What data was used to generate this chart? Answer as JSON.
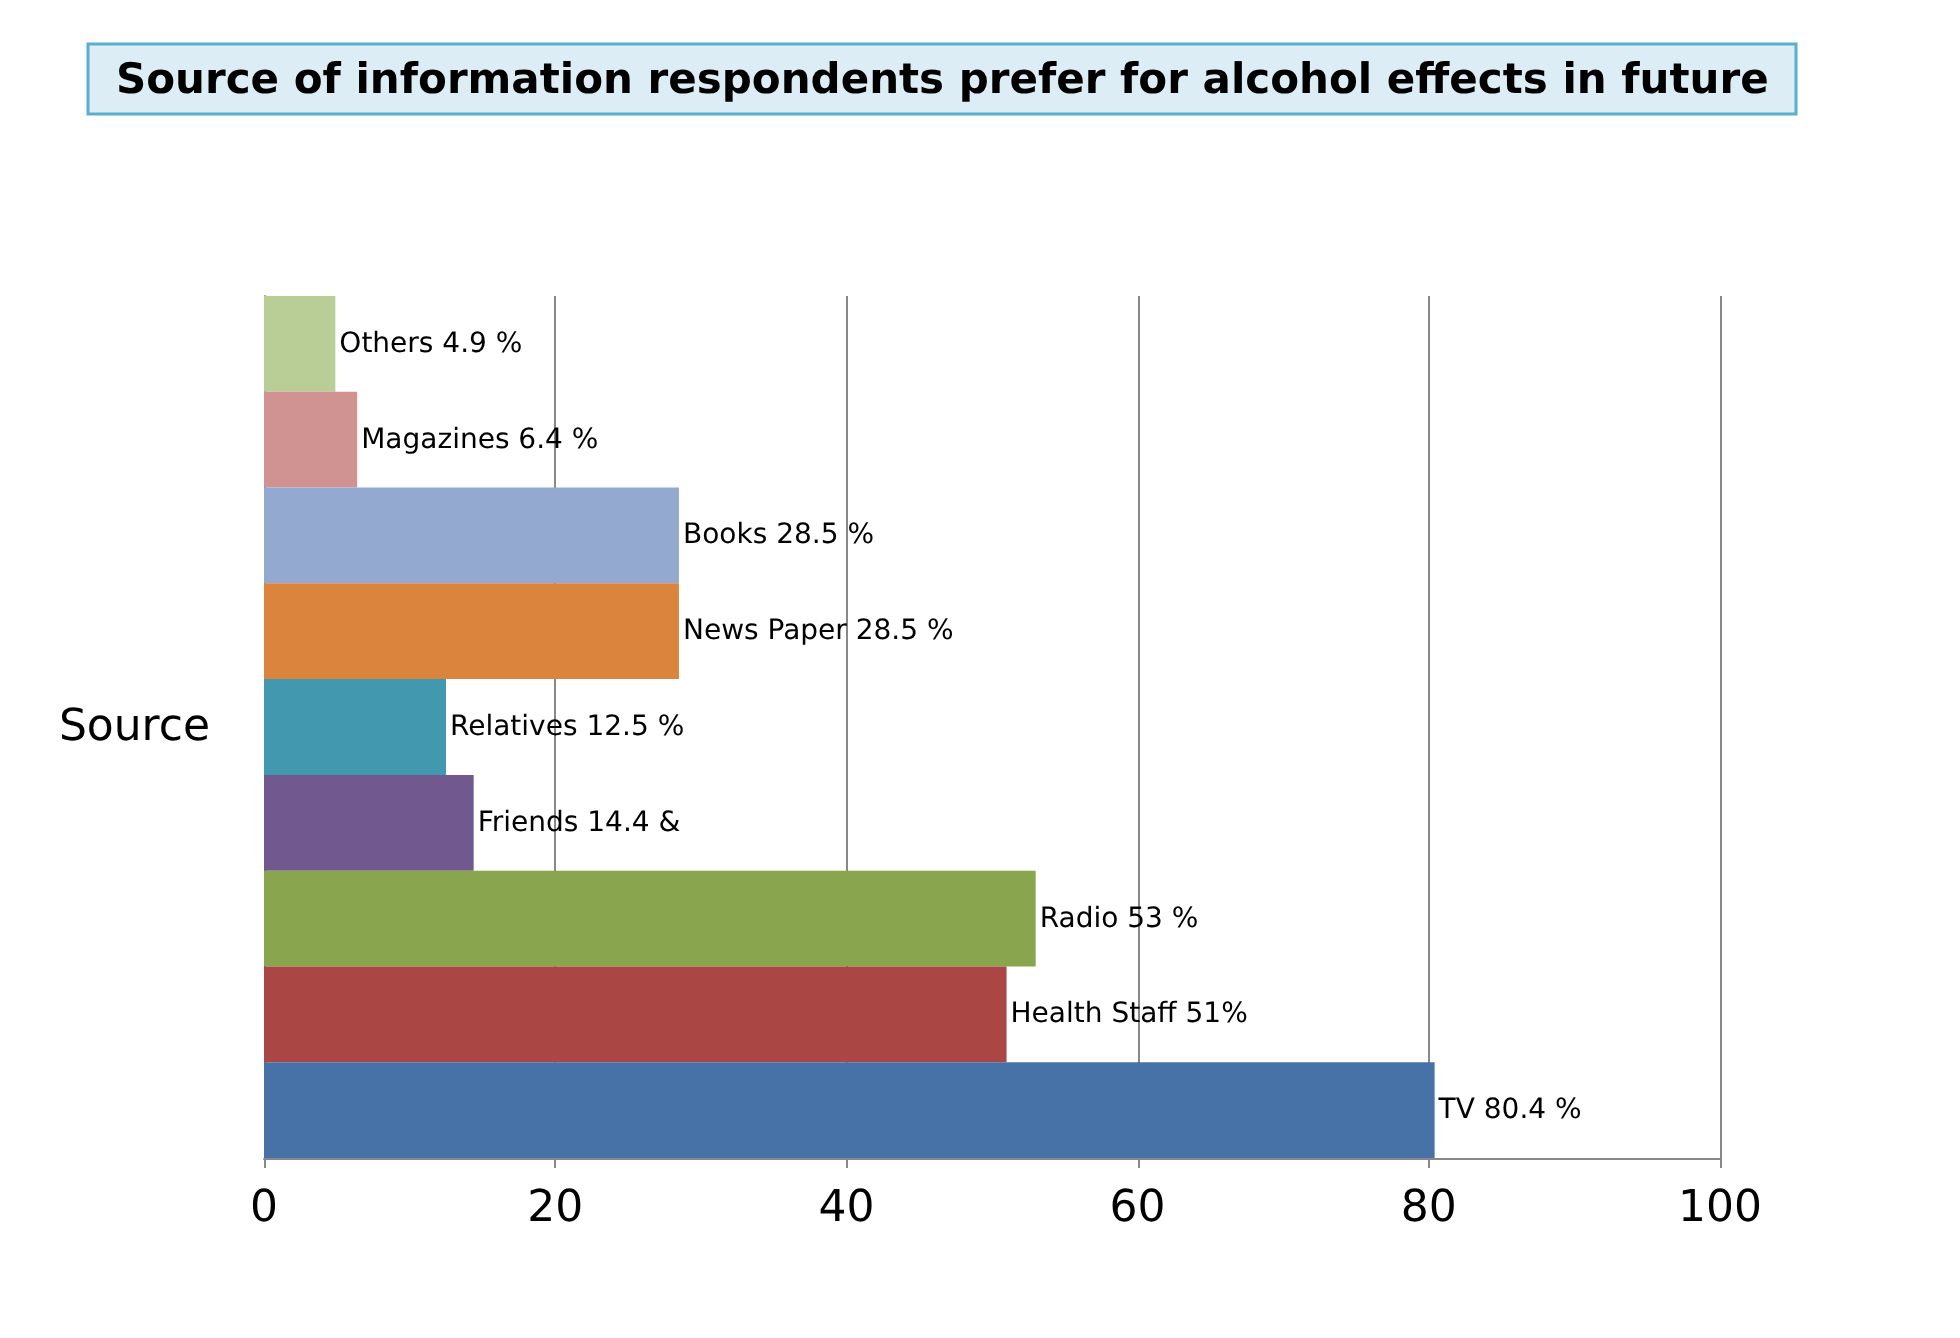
{
  "chart_data": {
    "type": "bar",
    "orientation": "horizontal",
    "title": "Source of information respondents prefer for alcohol effects in future",
    "ylabel": "Source",
    "categories": [
      null,
      null,
      null,
      null,
      null,
      null,
      null,
      null,
      null
    ],
    "values": [
      4.9,
      6.4,
      28.5,
      28.5,
      12.5,
      14.4,
      53,
      51,
      80.4
    ],
    "colors": [
      "#b9cd96",
      "#d19392",
      "#93a9cf",
      "#db843d",
      "#4198af",
      "#71588f",
      "#89a54e",
      "#aa4744",
      "#4672a8"
    ],
    "value_labels": [
      "Others 4.9 %",
      "Magazines 6.4 %",
      "Books 28.5 %",
      "News Paper 28.5 %",
      "Relatives 12.5 %",
      "Friends 14.4 &",
      "Radio 53 %",
      "Health Staff 51%",
      "TV 80.4 %"
    ],
    "xlim": [
      0,
      100
    ],
    "xticks": [
      0,
      20,
      40,
      60,
      80,
      100
    ],
    "grid": "x",
    "tick_labels": "x"
  }
}
